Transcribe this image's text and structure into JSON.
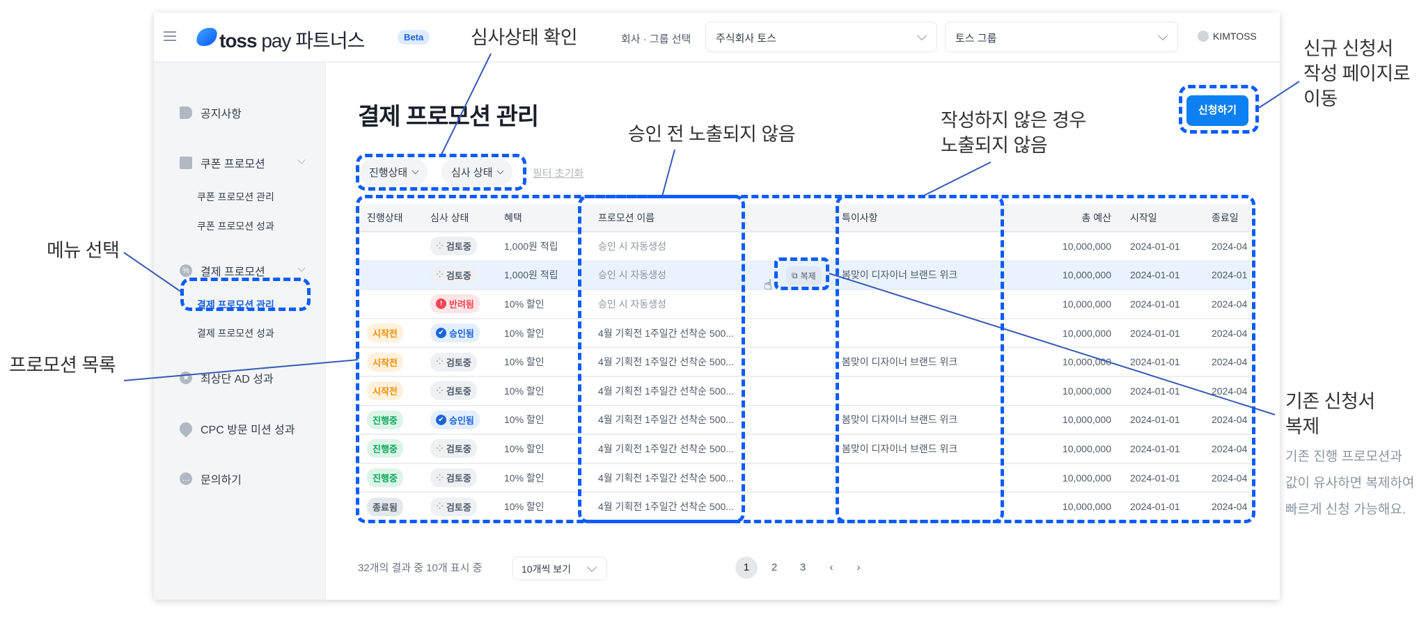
{
  "header": {
    "brand": "toss",
    "brand_pay": "pay",
    "brand_suffix": "파트너스",
    "beta": "Beta",
    "company_label": "회사 · 그룹 선택",
    "company_select": "주식회사 토스",
    "group_select": "토스 그룹",
    "user": "KIMTOSS"
  },
  "sidebar": {
    "items": [
      {
        "label": "공지사항",
        "icon": "megaphone-icon"
      },
      {
        "label": "쿠폰 프로모션",
        "icon": "ticket-icon",
        "subs": [
          "쿠폰 프로모션 관리",
          "쿠폰 프로모션 성과"
        ]
      },
      {
        "label": "결제 프로모션",
        "icon": "percent-icon",
        "subs": [
          "결제 프로모션 관리",
          "결제 프로모션 성과"
        ]
      },
      {
        "label": "최상단 AD 성과",
        "icon": "star-icon"
      },
      {
        "label": "CPC 방문 미션 성과",
        "icon": "pin-icon"
      },
      {
        "label": "문의하기",
        "icon": "chat-icon"
      }
    ],
    "active": "결제 프로모션 관리"
  },
  "main": {
    "title": "결제 프로모션 관리",
    "apply_button": "신청하기",
    "filters": {
      "progress": "진행상태",
      "review": "심사 상태",
      "reset": "필터 초기화"
    },
    "table": {
      "columns": [
        "진행상태",
        "심사 상태",
        "혜택",
        "프로모션 이름",
        "특이사항",
        "총 예산",
        "시작일",
        "종료일"
      ],
      "duplicate_label": "복제",
      "rows": [
        {
          "progress": "",
          "review": "검토중",
          "benefit": "1,000원 적립",
          "name": "승인 시 자동생성",
          "note": "",
          "budget": "10,000,000",
          "start": "2024-01-01",
          "end": "2024-04"
        },
        {
          "progress": "",
          "review": "검토중",
          "benefit": "1,000원 적립",
          "name": "승인 시 자동생성",
          "note": "봄맞이 디자이너 브랜드 위크",
          "budget": "10,000,000",
          "start": "2024-01-01",
          "end": "2024-01",
          "hover": true
        },
        {
          "progress": "",
          "review": "반려됨",
          "benefit": "10% 할인",
          "name": "승인 시 자동생성",
          "note": "",
          "budget": "10,000,000",
          "start": "2024-01-01",
          "end": "2024-04"
        },
        {
          "progress": "시작전",
          "review": "승인됨",
          "benefit": "10% 할인",
          "name": "4월 기획전 1주일간 선착순 500...",
          "note": "",
          "budget": "10,000,000",
          "start": "2024-01-01",
          "end": "2024-04"
        },
        {
          "progress": "시작전",
          "review": "검토중",
          "benefit": "10% 할인",
          "name": "4월 기획전 1주일간 선착순 500...",
          "note": "봄맞이 디자이너 브랜드 위크",
          "budget": "10,000,000",
          "start": "2024-01-01",
          "end": "2024-04"
        },
        {
          "progress": "시작전",
          "review": "검토중",
          "benefit": "10% 할인",
          "name": "4월 기획전 1주일간 선착순 500...",
          "note": "",
          "budget": "10,000,000",
          "start": "2024-01-01",
          "end": "2024-04"
        },
        {
          "progress": "진행중",
          "review": "승인됨",
          "benefit": "10% 할인",
          "name": "4월 기획전 1주일간 선착순 500...",
          "note": "봄맞이 디자이너 브랜드 위크",
          "budget": "10,000,000",
          "start": "2024-01-01",
          "end": "2024-04"
        },
        {
          "progress": "진행중",
          "review": "검토중",
          "benefit": "10% 할인",
          "name": "4월 기획전 1주일간 선착순 500...",
          "note": "봄맞이 디자이너 브랜드 위크",
          "budget": "10,000,000",
          "start": "2024-01-01",
          "end": "2024-04"
        },
        {
          "progress": "진행중",
          "review": "검토중",
          "benefit": "10% 할인",
          "name": "4월 기획전 1주일간 선착순 500...",
          "note": "",
          "budget": "10,000,000",
          "start": "2024-01-01",
          "end": "2024-04"
        },
        {
          "progress": "종료됨",
          "review": "검토중",
          "benefit": "10% 할인",
          "name": "4월 기획전 1주일간 선착순 500...",
          "note": "",
          "budget": "10,000,000",
          "start": "2024-01-01",
          "end": "2024-04"
        }
      ]
    },
    "footer": {
      "summary": "32개의 결과 중 10개 표시 중",
      "page_size": "10개씩 보기",
      "pages": [
        "1",
        "2",
        "3"
      ],
      "current_page": "1"
    }
  },
  "annotations": {
    "review_status": "심사상태 확인",
    "hidden_before_approval": "승인 전 노출되지 않음",
    "hidden_if_empty": [
      "작성하지 않은 경우",
      "노출되지 않음"
    ],
    "new_application": [
      "신규 신청서",
      "작성 페이지로",
      "이동"
    ],
    "menu_select": "메뉴 선택",
    "promotion_list": "프로모션 목록",
    "duplicate_title": [
      "기존 신청서",
      "복제"
    ],
    "duplicate_desc": [
      "기존 진행 프로모션과",
      "값이 유사하면 복제하여",
      "빠르게 신청 가능해요."
    ]
  },
  "colors": {
    "accent": "#0d80f2",
    "annotation_box": "#0a5cff",
    "annotation_line": "#3559b5",
    "row_hover": "#e8f3ff"
  }
}
